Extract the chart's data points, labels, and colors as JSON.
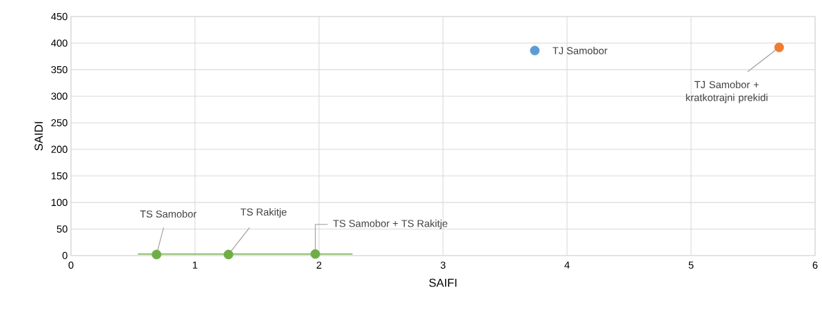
{
  "chart_data": {
    "type": "scatter",
    "xlabel": "SAIFI",
    "ylabel": "SAIDI",
    "xlim": [
      0,
      6
    ],
    "xticks": [
      0,
      1,
      2,
      3,
      4,
      5,
      6
    ],
    "ylim": [
      0,
      450
    ],
    "yticks": [
      0,
      50,
      100,
      150,
      200,
      250,
      300,
      350,
      400,
      450
    ],
    "grid": true,
    "series": [
      {
        "color": "#5b9bd5",
        "x": [
          3.74
        ],
        "values": [
          386
        ]
      },
      {
        "color": "#ed7d31",
        "x": [
          5.71
        ],
        "values": [
          392
        ]
      },
      {
        "color": "#70ad47",
        "x": [
          0.69,
          1.27,
          1.97
        ],
        "values": [
          2,
          2,
          3
        ]
      },
      {
        "type": "line",
        "marker": "none",
        "color": "#70ad47",
        "x": [
          0.54,
          2.27
        ],
        "values": [
          3,
          3
        ]
      }
    ],
    "annotations": [
      {
        "text": "TS Samobor",
        "x": 0.69,
        "y": 2
      },
      {
        "text": "TS Rakitje",
        "x": 1.27,
        "y": 2
      },
      {
        "text": "TS Samobor + TS Rakitje",
        "x": 1.97,
        "y": 3
      },
      {
        "text": "TJ Samobor",
        "x": 3.74,
        "y": 386
      },
      {
        "text": "TJ Samobor + kratkotrajni prekidi",
        "x": 5.71,
        "y": 392
      }
    ]
  }
}
